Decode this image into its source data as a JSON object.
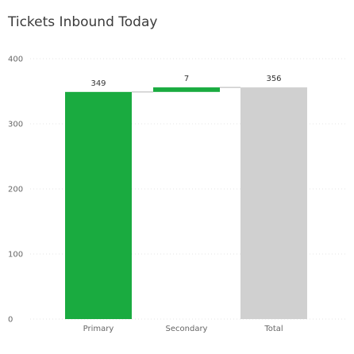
{
  "chart_data": {
    "type": "bar",
    "subtype": "waterfall",
    "title": "Tickets Inbound Today",
    "xlabel": "",
    "ylabel": "",
    "ylim": [
      0,
      400
    ],
    "yticks": [
      0,
      100,
      200,
      300,
      400
    ],
    "grid": true,
    "legend": "none",
    "categories": [
      "Primary",
      "Secondary",
      "Total"
    ],
    "values": [
      349,
      7,
      356
    ],
    "base": [
      0,
      349,
      0
    ],
    "labels": [
      "349",
      "7",
      "356"
    ],
    "colors": [
      "#1aab40",
      "#1aab40",
      "#d0d0d0"
    ]
  },
  "colors": {
    "increase": "#1aab40",
    "total": "#d0d0d0",
    "gridline": "#e6e6e6",
    "connector": "#b3b3b3"
  }
}
